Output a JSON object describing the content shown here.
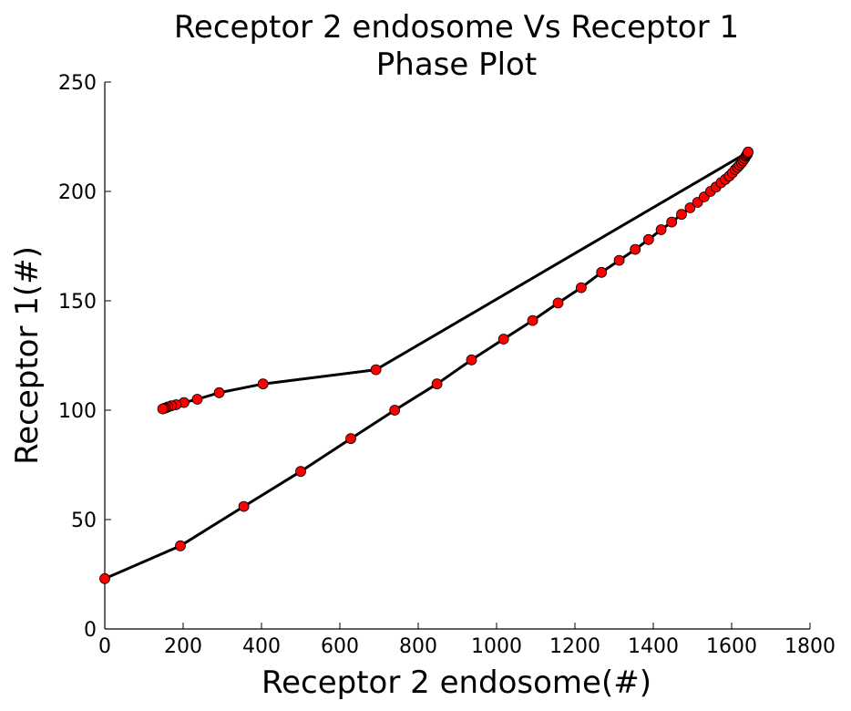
{
  "chart_data": {
    "type": "line",
    "title": "Receptor 2 endosome Vs Receptor 1",
    "subtitle": "Phase Plot",
    "xlabel": "Receptor 2 endosome(#)",
    "ylabel": "Receptor 1(#)",
    "xlim": [
      0,
      1800
    ],
    "ylim": [
      0,
      250
    ],
    "xticks": [
      0,
      200,
      400,
      600,
      800,
      1000,
      1200,
      1400,
      1600,
      1800
    ],
    "yticks": [
      0,
      50,
      100,
      150,
      200,
      250
    ],
    "grid": false,
    "line_color": "#000000",
    "marker_color": "#ff0000",
    "series": [
      {
        "x": [
          0,
          193,
          355,
          500,
          628,
          740,
          848,
          936,
          1018,
          1092,
          1157,
          1216,
          1268,
          1313,
          1354,
          1388,
          1420,
          1447,
          1472,
          1494,
          1513,
          1530,
          1546,
          1560,
          1573,
          1584,
          1594,
          1602,
          1609,
          1615,
          1620,
          1625,
          1629,
          1633,
          1636,
          1638,
          1640,
          1641,
          1642,
          692,
          404,
          292,
          236,
          202,
          182,
          170,
          161,
          155,
          151,
          148
        ],
        "y": [
          23,
          38,
          56,
          72,
          87,
          100,
          112,
          123,
          132.5,
          141,
          149,
          156,
          163,
          168.5,
          173.5,
          178,
          182.5,
          186,
          189.5,
          192.5,
          195,
          197.5,
          200,
          202,
          204,
          205.5,
          207,
          208.5,
          210,
          211,
          212,
          213,
          214,
          215,
          216,
          216.5,
          217,
          217.5,
          218,
          118.5,
          112,
          108,
          105,
          103.5,
          102.5,
          102,
          101.5,
          101,
          100.8,
          100.6
        ]
      }
    ]
  }
}
